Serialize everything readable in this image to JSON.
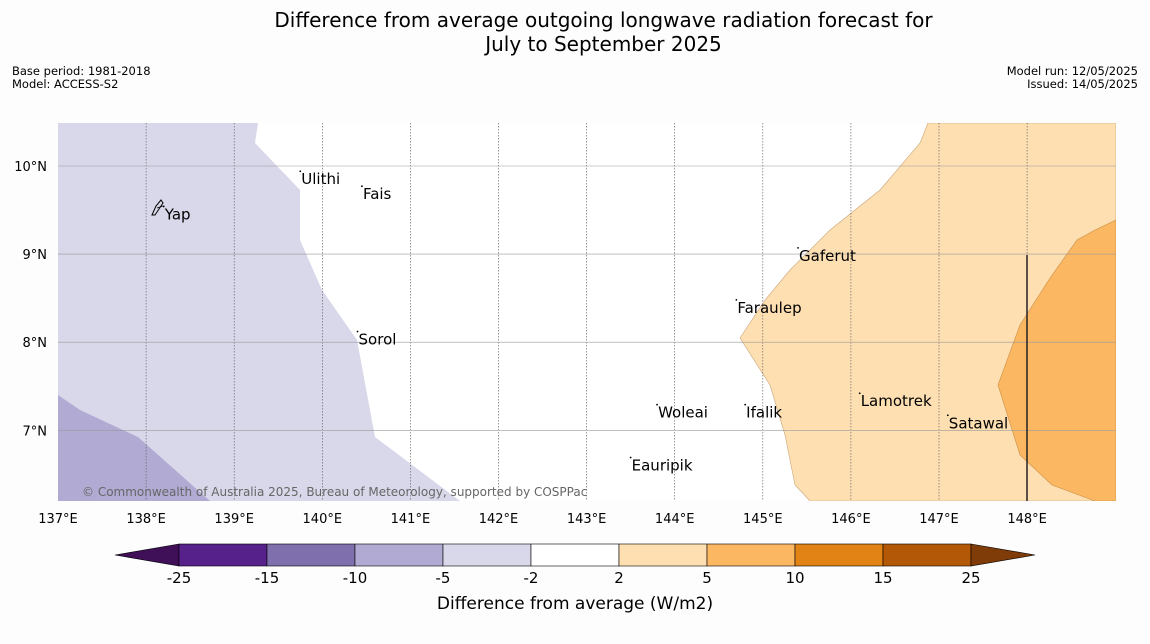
{
  "title": {
    "line1": "Difference from average outgoing longwave radiation forecast for",
    "line2": "July to September 2025"
  },
  "meta_left": {
    "base_period": "Base period: 1981-2018",
    "model": "Model: ACCESS-S2"
  },
  "meta_right": {
    "model_run": "Model run: 12/05/2025",
    "issued": "Issued: 14/05/2025"
  },
  "map": {
    "lon_range": [
      137,
      149
    ],
    "lat_range": [
      6.2,
      10.5
    ],
    "lon_ticks": [
      {
        "value": 137,
        "label": "137°E"
      },
      {
        "value": 138,
        "label": "138°E"
      },
      {
        "value": 139,
        "label": "139°E"
      },
      {
        "value": 140,
        "label": "140°E"
      },
      {
        "value": 141,
        "label": "141°E"
      },
      {
        "value": 142,
        "label": "142°E"
      },
      {
        "value": 143,
        "label": "143°E"
      },
      {
        "value": 144,
        "label": "144°E"
      },
      {
        "value": 145,
        "label": "145°E"
      },
      {
        "value": 146,
        "label": "146°E"
      },
      {
        "value": 147,
        "label": "147°E"
      },
      {
        "value": 148,
        "label": "148°E"
      }
    ],
    "lat_ticks": [
      {
        "value": 10,
        "label": "10°N"
      },
      {
        "value": 9,
        "label": "9°N"
      },
      {
        "value": 8,
        "label": "8°N"
      },
      {
        "value": 7,
        "label": "7°N"
      }
    ],
    "places": [
      {
        "name": "Ulithi",
        "lon": 139.75,
        "lat": 9.85
      },
      {
        "name": "Fais",
        "lon": 140.45,
        "lat": 9.68
      },
      {
        "name": "Yap",
        "lon": 138.2,
        "lat": 9.45
      },
      {
        "name": "Gaferut",
        "lon": 145.4,
        "lat": 8.98
      },
      {
        "name": "Faraulep",
        "lon": 144.7,
        "lat": 8.39
      },
      {
        "name": "Sorol",
        "lon": 140.4,
        "lat": 8.03
      },
      {
        "name": "Lamotrek",
        "lon": 146.1,
        "lat": 7.33
      },
      {
        "name": "Woleai",
        "lon": 143.8,
        "lat": 7.2
      },
      {
        "name": "Ifalik",
        "lon": 144.8,
        "lat": 7.2
      },
      {
        "name": "Satawal",
        "lon": 147.1,
        "lat": 7.08
      },
      {
        "name": "Eauripik",
        "lon": 143.5,
        "lat": 6.6
      }
    ],
    "copyright": "© Commonwealth of Australia 2025, Bureau of Meteorology, supported by COSPPac"
  },
  "colors": {
    "lt_m25": "#3f0f58",
    "m25_m15": "#56218a",
    "m15_m10": "#7f70ad",
    "m10_m5": "#b1abd3",
    "m5_m2": "#d8d8ea",
    "m2_2": "#ffffff",
    "p2_p5": "#fedfb2",
    "p5_p10": "#fbb762",
    "p10_p15": "#e28415",
    "p15_p25": "#b35806",
    "gt_p25": "#7f3b08"
  },
  "colorbar": {
    "ticks": [
      "-25",
      "-15",
      "-10",
      "-5",
      "-2",
      "2",
      "5",
      "10",
      "15",
      "25"
    ],
    "label": "Difference from average (W/m2)"
  }
}
